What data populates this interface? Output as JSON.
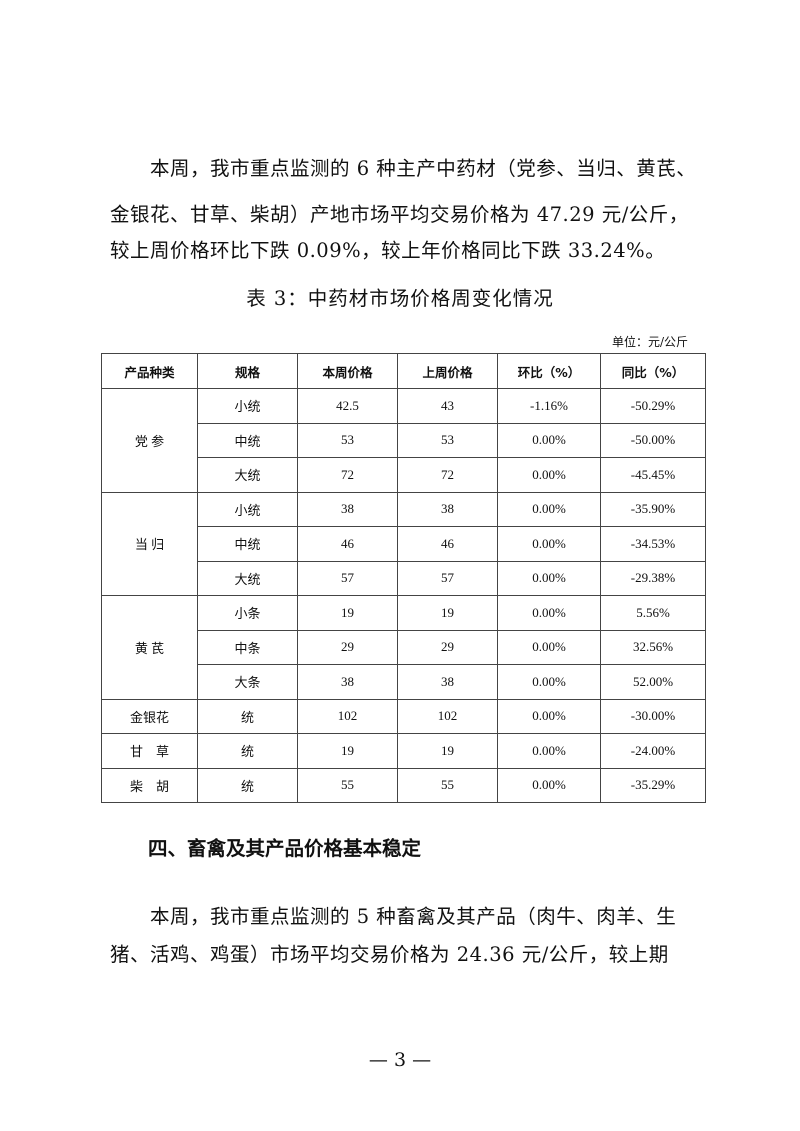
{
  "paragraph1": [
    "　　本周，我市重点监测的 6 种主产中药材（党参、当归、黄芪、",
    "金银花、甘草、柴胡）产地市场平均交易价格为 47.29 元/公斤，",
    "较上周价格环比下跌 0.09%，较上年价格同比下跌 33.24%。"
  ],
  "table_caption": "表 3：中药材市场价格周变化情况",
  "unit": "单位：元/公斤",
  "table": {
    "headers": [
      "产品种类",
      "规格",
      "本周价格",
      "上周价格",
      "环比（%）",
      "同比（%）"
    ],
    "groups": [
      {
        "name": "党 参",
        "rows": [
          [
            "小统",
            "42.5",
            "43",
            "-1.16%",
            "-50.29%"
          ],
          [
            "中统",
            "53",
            "53",
            "0.00%",
            "-50.00%"
          ],
          [
            "大统",
            "72",
            "72",
            "0.00%",
            "-45.45%"
          ]
        ]
      },
      {
        "name": "当 归",
        "rows": [
          [
            "小统",
            "38",
            "38",
            "0.00%",
            "-35.90%"
          ],
          [
            "中统",
            "46",
            "46",
            "0.00%",
            "-34.53%"
          ],
          [
            "大统",
            "57",
            "57",
            "0.00%",
            "-29.38%"
          ]
        ]
      },
      {
        "name": "黄 芪",
        "rows": [
          [
            "小条",
            "19",
            "19",
            "0.00%",
            "5.56%"
          ],
          [
            "中条",
            "29",
            "29",
            "0.00%",
            "32.56%"
          ],
          [
            "大条",
            "38",
            "38",
            "0.00%",
            "52.00%"
          ]
        ]
      },
      {
        "name": "金银花",
        "rows": [
          [
            "统",
            "102",
            "102",
            "0.00%",
            "-30.00%"
          ]
        ]
      },
      {
        "name": "甘　草",
        "rows": [
          [
            "统",
            "19",
            "19",
            "0.00%",
            "-24.00%"
          ]
        ]
      },
      {
        "name": "柴　胡",
        "rows": [
          [
            "统",
            "55",
            "55",
            "0.00%",
            "-35.29%"
          ]
        ]
      }
    ]
  },
  "section_heading": "四、畜禽及其产品价格基本稳定",
  "paragraph2": [
    "　　本周，我市重点监测的 5 种畜禽及其产品（肉牛、肉羊、生",
    "猪、活鸡、鸡蛋）市场平均交易价格为 24.36 元/公斤，较上期"
  ],
  "page_number": "— 3 —"
}
